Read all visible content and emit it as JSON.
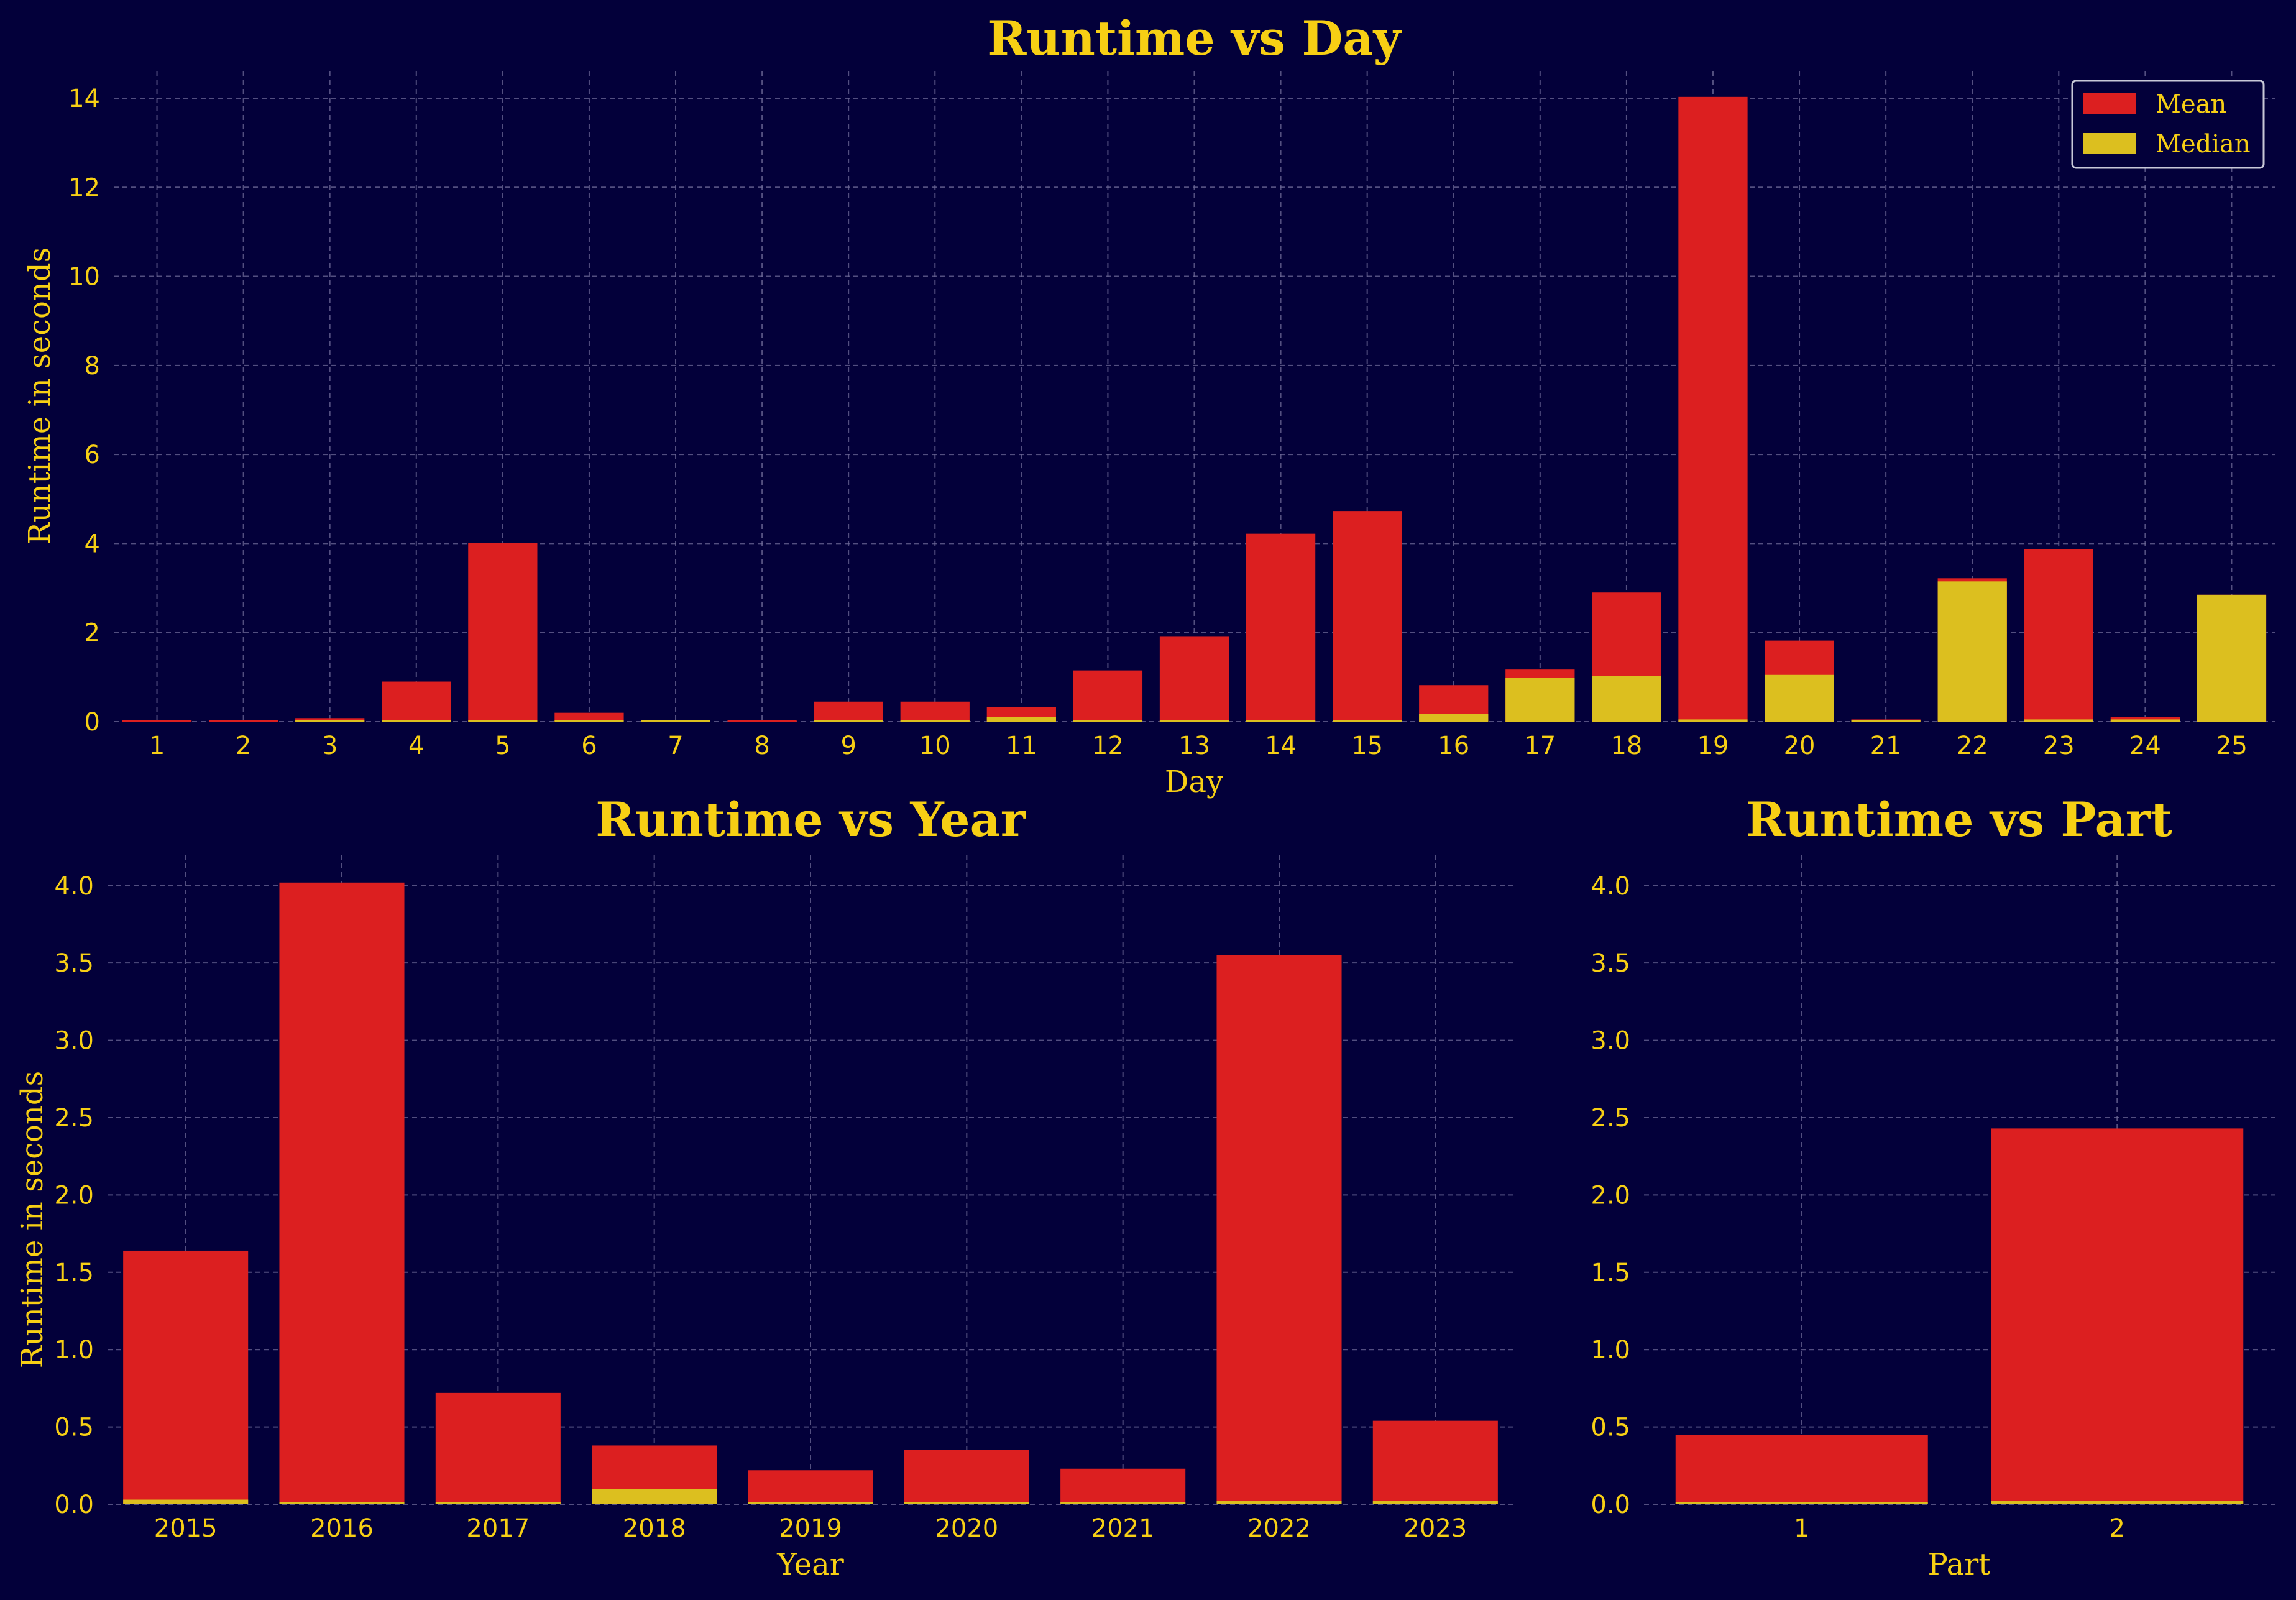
{
  "colors": {
    "background": "#03003a",
    "mean": "#dc1f20",
    "median": "#dcbf1f",
    "text": "#f7cf14",
    "grid": "#6e6a98"
  },
  "chart_data": [
    {
      "type": "bar",
      "title": "Runtime vs Day",
      "xlabel": "Day",
      "ylabel": "Runtime in seconds",
      "ylim": [
        0,
        14.6
      ],
      "yticks": [
        "0",
        "2",
        "4",
        "6",
        "8",
        "10",
        "12",
        "14"
      ],
      "ytick_values": [
        0,
        2,
        4,
        6,
        8,
        10,
        12,
        14
      ],
      "categories": [
        "1",
        "2",
        "3",
        "4",
        "5",
        "6",
        "7",
        "8",
        "9",
        "10",
        "11",
        "12",
        "13",
        "14",
        "15",
        "16",
        "17",
        "18",
        "19",
        "20",
        "21",
        "22",
        "23",
        "24",
        "25"
      ],
      "legend": {
        "position": "top-right",
        "entries": [
          "Mean",
          "Median"
        ]
      },
      "grid": true,
      "series": [
        {
          "name": "Mean",
          "color": "#dc1f20",
          "values": [
            0.01,
            0.01,
            0.08,
            0.9,
            4.02,
            0.2,
            0.02,
            0.02,
            0.45,
            0.45,
            0.33,
            1.15,
            1.92,
            4.22,
            4.73,
            0.82,
            1.17,
            2.9,
            14.03,
            1.82,
            0.05,
            3.22,
            3.88,
            0.11,
            2.85
          ]
        },
        {
          "name": "Median",
          "color": "#dcbf1f",
          "values": [
            0.0,
            0.0,
            0.01,
            0.01,
            0.01,
            0.01,
            0.01,
            0.0,
            0.01,
            0.01,
            0.1,
            0.01,
            0.02,
            0.02,
            0.02,
            0.18,
            0.98,
            1.02,
            0.05,
            1.05,
            0.02,
            3.15,
            0.05,
            0.05,
            2.85
          ]
        }
      ]
    },
    {
      "type": "bar",
      "title": "Runtime vs Year",
      "xlabel": "Year",
      "ylabel": "Runtime in seconds",
      "ylim": [
        0,
        4.2
      ],
      "yticks": [
        "0.0",
        "0.5",
        "1.0",
        "1.5",
        "2.0",
        "2.5",
        "3.0",
        "3.5",
        "4.0"
      ],
      "ytick_values": [
        0,
        0.5,
        1,
        1.5,
        2,
        2.5,
        3,
        3.5,
        4
      ],
      "categories": [
        "2015",
        "2016",
        "2017",
        "2018",
        "2019",
        "2020",
        "2021",
        "2022",
        "2023"
      ],
      "grid": true,
      "series": [
        {
          "name": "Mean",
          "color": "#dc1f20",
          "values": [
            1.64,
            4.02,
            0.72,
            0.38,
            0.22,
            0.35,
            0.23,
            3.55,
            0.54
          ]
        },
        {
          "name": "Median",
          "color": "#dcbf1f",
          "values": [
            0.03,
            0.01,
            0.01,
            0.1,
            0.01,
            0.01,
            0.015,
            0.02,
            0.02
          ]
        }
      ]
    },
    {
      "type": "bar",
      "title": "Runtime vs Part",
      "xlabel": "Part",
      "ylabel": "",
      "ylim": [
        0,
        4.2
      ],
      "yticks": [
        "0.0",
        "0.5",
        "1.0",
        "1.5",
        "2.0",
        "2.5",
        "3.0",
        "3.5",
        "4.0"
      ],
      "ytick_values": [
        0,
        0.5,
        1,
        1.5,
        2,
        2.5,
        3,
        3.5,
        4
      ],
      "categories": [
        "1",
        "2"
      ],
      "grid": true,
      "series": [
        {
          "name": "Mean",
          "color": "#dc1f20",
          "values": [
            0.45,
            2.43
          ]
        },
        {
          "name": "Median",
          "color": "#dcbf1f",
          "values": [
            0.01,
            0.02
          ]
        }
      ]
    }
  ]
}
